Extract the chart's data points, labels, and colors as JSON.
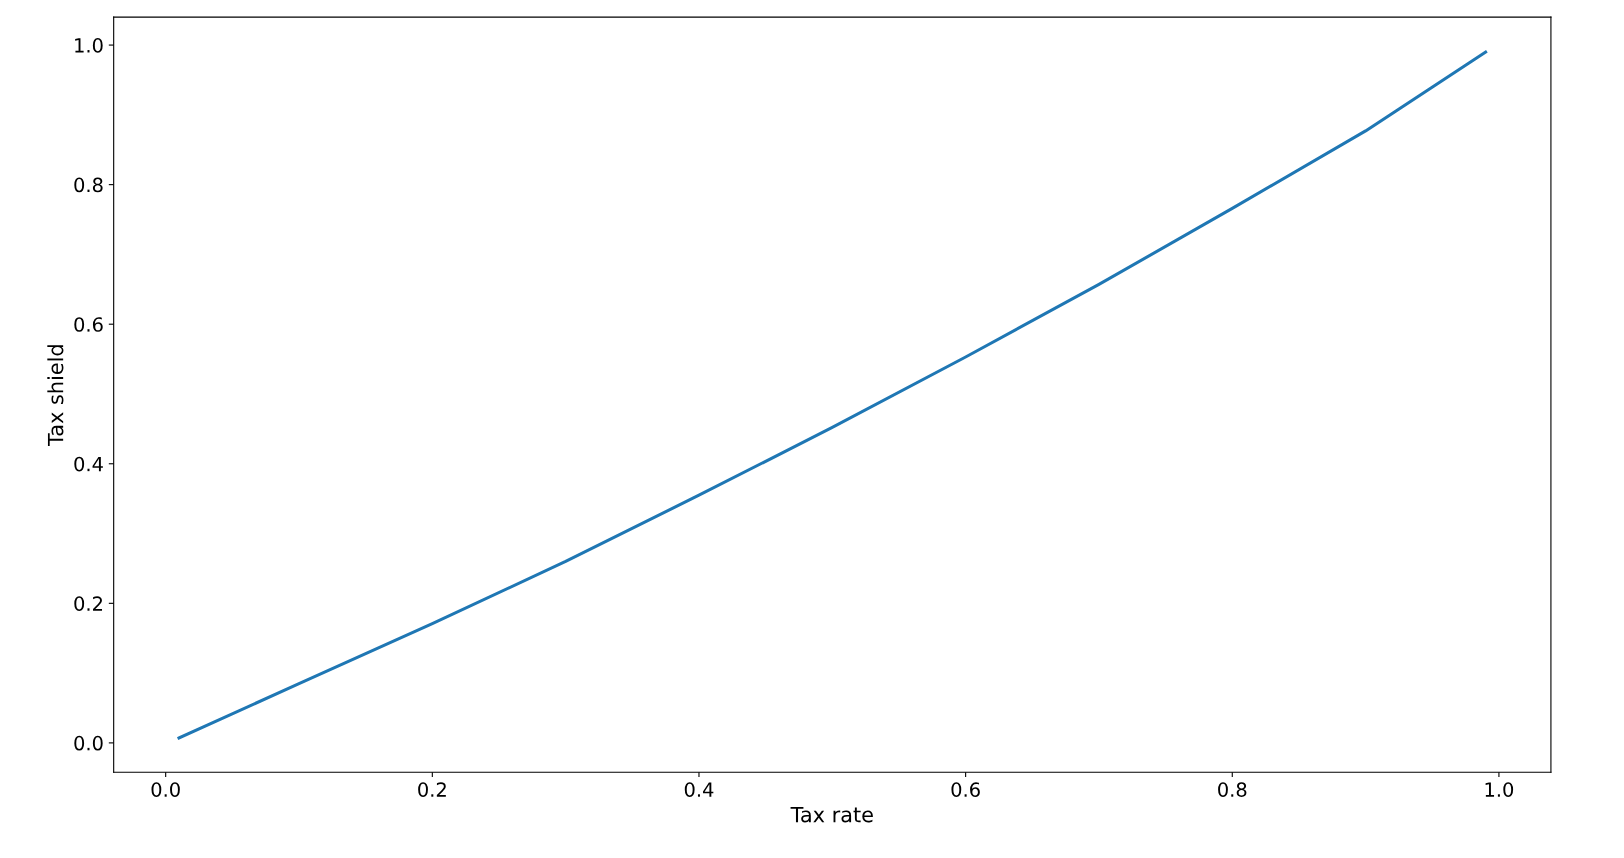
{
  "chart_data": {
    "type": "line",
    "xlabel": "Tax rate",
    "ylabel": "Tax shield",
    "x": [
      0.01,
      0.1,
      0.2,
      0.3,
      0.4,
      0.5,
      0.6,
      0.7,
      0.8,
      0.9,
      0.99
    ],
    "series": [
      {
        "color": "#1f77b4",
        "values": [
          0.007,
          0.085,
          0.171,
          0.26,
          0.355,
          0.452,
          0.553,
          0.657,
          0.766,
          0.877,
          0.99
        ]
      }
    ],
    "xlim": [
      -0.039,
      1.039
    ],
    "ylim": [
      -0.042,
      1.04
    ],
    "xticks": [
      {
        "value": 0,
        "label": "0.0"
      },
      0.2,
      0.4,
      0.6,
      0.8,
      {
        "value": 1,
        "label": "1.0"
      }
    ],
    "yticks": [
      {
        "value": 0,
        "label": "0.0"
      },
      0.2,
      0.4,
      0.6,
      0.8,
      {
        "value": 1,
        "label": "1.0"
      }
    ],
    "grid": false,
    "legend": false
  }
}
